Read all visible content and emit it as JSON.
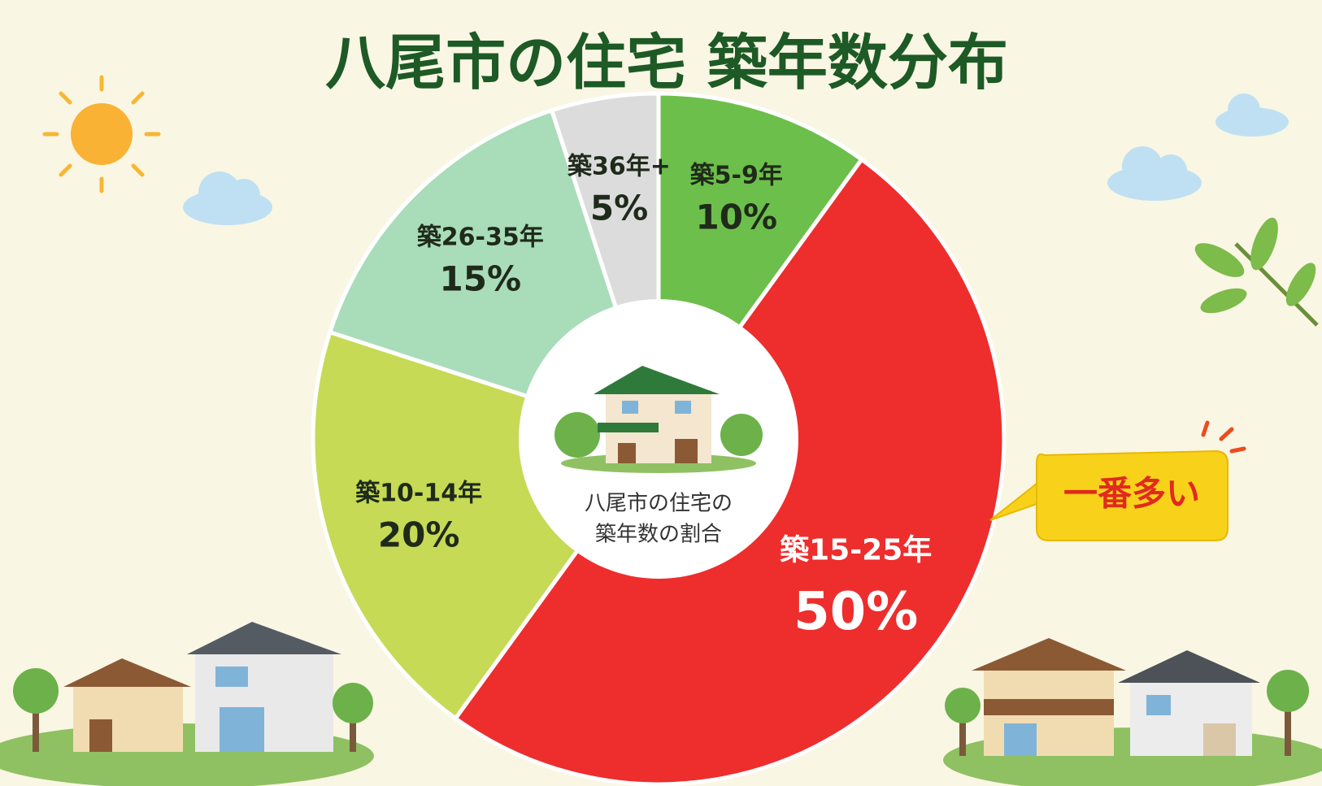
{
  "chart_data": {
    "type": "pie",
    "title": "八尾市の住宅 築年数分布",
    "categories": [
      "築5-9年",
      "築15-25年",
      "築10-14年",
      "築26-35年",
      "築36年+"
    ],
    "values": [
      10,
      50,
      20,
      15,
      5
    ],
    "value_labels": [
      "10%",
      "50%",
      "20%",
      "15%",
      "5%"
    ],
    "colors": [
      "#6dbf4b",
      "#ee2d2d",
      "#c6da56",
      "#a9dcb9",
      "#dcdcdc"
    ],
    "label_colors": [
      "#1f2a1a",
      "#ffffff",
      "#1f2a1a",
      "#1f2a1a",
      "#1f2a1a"
    ],
    "center_label": [
      "八尾市の住宅の",
      "築年数の割合"
    ],
    "annotation": "一番多い"
  }
}
